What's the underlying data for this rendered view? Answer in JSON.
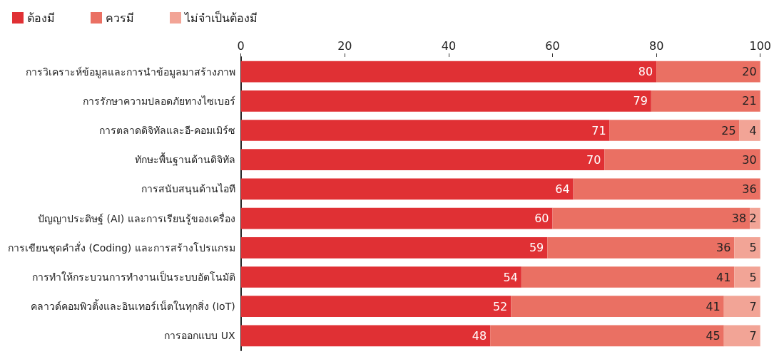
{
  "chart_data": {
    "type": "bar",
    "orientation": "horizontal",
    "stacked": true,
    "data_labels": true,
    "legend": "top left",
    "grid": false,
    "categories": [
      "การวิเคราะห์ข้อมูลและการนำข้อมูลมาสร้างภาพ",
      "การรักษาความปลอดภัยทางไซเบอร์",
      "การตลาดดิจิทัลและอี-คอมเมิร์ซ",
      "ทักษะพื้นฐานด้านดิจิทัล",
      "การสนับสนุนด้านไอที",
      "ปัญญาประดิษฐ์ (AI) และการเรียนรู้ของเครื่อง",
      "การเขียนชุดคำสั่ง (Coding) และการสร้างโปรแกรม",
      "การทำให้กระบวนการทำงานเป็นระบบอัตโนมัติ",
      "คลาวด์คอมพิวติ้งและอินเทอร์เน็ตในทุกสิ่ง (IoT)",
      "การออกแบบ UX"
    ],
    "series": [
      {
        "name": "ต้องมี",
        "color": "#e03034",
        "values": [
          80,
          79,
          71,
          70,
          64,
          60,
          59,
          54,
          52,
          48
        ]
      },
      {
        "name": "ควรมี",
        "color": "#ea7063",
        "values": [
          20,
          21,
          25,
          30,
          36,
          38,
          36,
          41,
          41,
          45
        ]
      },
      {
        "name": "ไม่จำเป็นต้องมี",
        "color": "#f2a496",
        "values": [
          null,
          null,
          4,
          null,
          null,
          2,
          5,
          5,
          7,
          7
        ]
      }
    ],
    "xlim": [
      0,
      100
    ],
    "xticks": [
      0,
      20,
      40,
      60,
      80,
      100
    ]
  }
}
